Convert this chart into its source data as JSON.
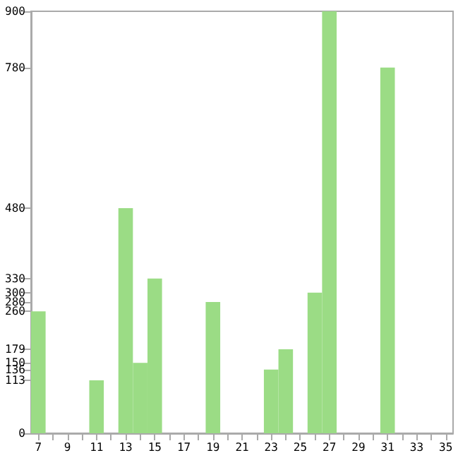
{
  "chart_data": {
    "type": "bar",
    "categories": [
      "7",
      null,
      "9",
      null,
      "11",
      null,
      "13",
      null,
      "15",
      null,
      "17",
      null,
      "19",
      null,
      "21",
      null,
      "23",
      null,
      "25",
      null,
      "27",
      null,
      "29",
      null,
      "31",
      null,
      "33",
      null,
      "35"
    ],
    "values": [
      260,
      0,
      0,
      0,
      113,
      0,
      480,
      150,
      330,
      0,
      0,
      0,
      280,
      0,
      0,
      0,
      136,
      179,
      0,
      300,
      900,
      0,
      0,
      0,
      780,
      0,
      0,
      0,
      0
    ],
    "color": "#9bdc85",
    "ylim": [
      0,
      900
    ],
    "yticks": [
      0,
      113,
      136,
      150,
      179,
      260,
      280,
      300,
      330,
      480,
      780,
      900
    ],
    "grid": false
  }
}
